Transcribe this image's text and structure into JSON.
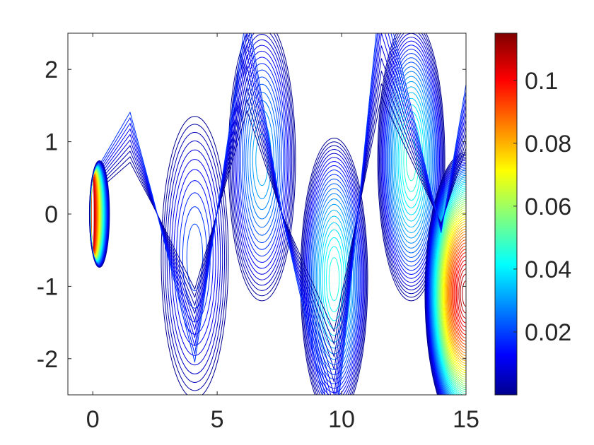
{
  "chart_data": {
    "type": "contour",
    "title": "",
    "xlabel": "",
    "ylabel": "",
    "xlim": [
      -1,
      15
    ],
    "ylim": [
      -2.5,
      2.5
    ],
    "x_ticks": [
      0,
      5,
      10,
      15
    ],
    "x_tick_labels": [
      "0",
      "5",
      "10",
      "15"
    ],
    "y_ticks": [
      2,
      1,
      0,
      -1,
      -2
    ],
    "y_tick_labels": [
      "2",
      "1",
      "0",
      "-1",
      "-2"
    ],
    "grid": false,
    "colormap": "jet",
    "colorbar": {
      "location": "right",
      "limits": [
        0.0,
        0.115
      ],
      "ticks": [
        0.1,
        0.08,
        0.06,
        0.04,
        0.02
      ],
      "tick_labels": [
        "0.1",
        "0.08",
        "0.06",
        "0.04",
        "0.02"
      ]
    },
    "field": {
      "description": "vortex street wake behind plate at x=0, y in [-0.5, 0.5]",
      "source": {
        "x": 0.0,
        "y_range": [
          -0.5,
          0.5
        ],
        "max_value": 0.11
      },
      "vortices": [
        {
          "x": 4.1,
          "y": -0.6,
          "peak": 0.022
        },
        {
          "x": 6.8,
          "y": 0.75,
          "peak": 0.033
        },
        {
          "x": 9.7,
          "y": -0.9,
          "peak": 0.045
        },
        {
          "x": 12.8,
          "y": 0.75,
          "peak": 0.047
        },
        {
          "x": 15.0,
          "y": -1.1,
          "peak": 0.11
        }
      ]
    }
  }
}
